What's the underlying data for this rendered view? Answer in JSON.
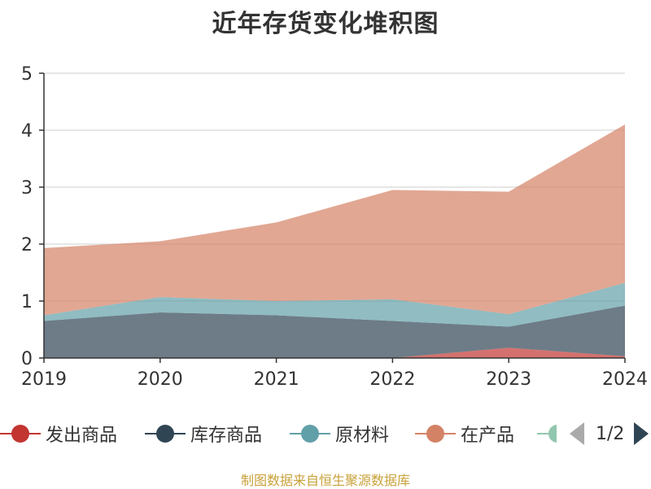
{
  "title": "近年存货变化堆积图",
  "source_text": "制图数据来自恒生聚源数据库",
  "pager": {
    "text": "1/2"
  },
  "legend": [
    {
      "label": "发出商品",
      "color": "#c23531"
    },
    {
      "label": "库存商品",
      "color": "#2f4554"
    },
    {
      "label": "原材料",
      "color": "#61a0a8"
    },
    {
      "label": "在产品",
      "color": "#d48265"
    },
    {
      "label": "",
      "color": "#91c7ae"
    }
  ],
  "chart_data": {
    "type": "area",
    "stacked": true,
    "title": "近年存货变化堆积图",
    "x": [
      "2019",
      "2020",
      "2021",
      "2022",
      "2023",
      "2024"
    ],
    "ylim": [
      0,
      5
    ],
    "yticks": [
      "0",
      "1",
      "2",
      "3",
      "4",
      "5"
    ],
    "grid": true,
    "legend_position": "bottom",
    "series": [
      {
        "name": "发出商品",
        "color": "#c23531",
        "values": [
          0,
          0,
          0,
          0,
          0.18,
          0.03
        ]
      },
      {
        "name": "库存商品",
        "color": "#2f4554",
        "values": [
          0.65,
          0.8,
          0.75,
          0.65,
          0.37,
          0.89
        ]
      },
      {
        "name": "原材料",
        "color": "#61a0a8",
        "values": [
          0.1,
          0.27,
          0.25,
          0.38,
          0.22,
          0.4
        ]
      },
      {
        "name": "在产品",
        "color": "#d48265",
        "values": [
          1.18,
          0.98,
          1.38,
          1.92,
          2.15,
          2.78
        ]
      }
    ]
  }
}
